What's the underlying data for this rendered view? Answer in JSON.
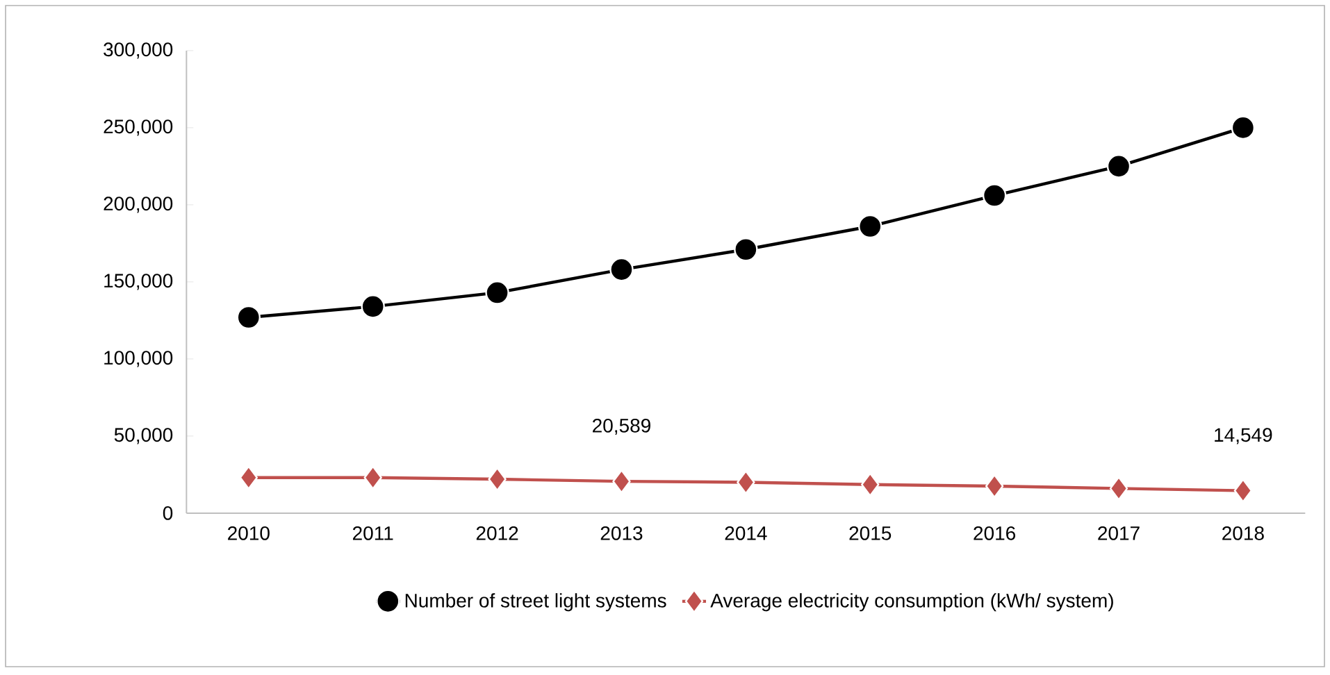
{
  "chart_data": {
    "type": "line",
    "categories": [
      "2010",
      "2011",
      "2012",
      "2013",
      "2014",
      "2015",
      "2016",
      "2017",
      "2018"
    ],
    "series": [
      {
        "name": "Number of street light systems",
        "color": "#000000",
        "marker": "circle",
        "values": [
          127000,
          134000,
          143000,
          158000,
          171000,
          186000,
          206000,
          225000,
          250000
        ]
      },
      {
        "name": "Average electricity consumption (kWh/ system)",
        "color": "#c0504d",
        "marker": "diamond",
        "values": [
          23000,
          23000,
          22000,
          20589,
          20000,
          18500,
          17500,
          16000,
          14549
        ],
        "value_labels": [
          null,
          null,
          null,
          "20,589",
          null,
          null,
          null,
          null,
          "14,549"
        ]
      }
    ],
    "ylim": [
      0,
      300000
    ],
    "yticks": [
      {
        "value": 0,
        "label": "0"
      },
      {
        "value": 50000,
        "label": "50,000"
      },
      {
        "value": 100000,
        "label": "100,000"
      },
      {
        "value": 150000,
        "label": "150,000"
      },
      {
        "value": 200000,
        "label": "200,000"
      },
      {
        "value": 250000,
        "label": "250,000"
      },
      {
        "value": 300000,
        "label": "300,000"
      }
    ],
    "grid": false,
    "legend": "bottom",
    "line_style": "solid"
  }
}
